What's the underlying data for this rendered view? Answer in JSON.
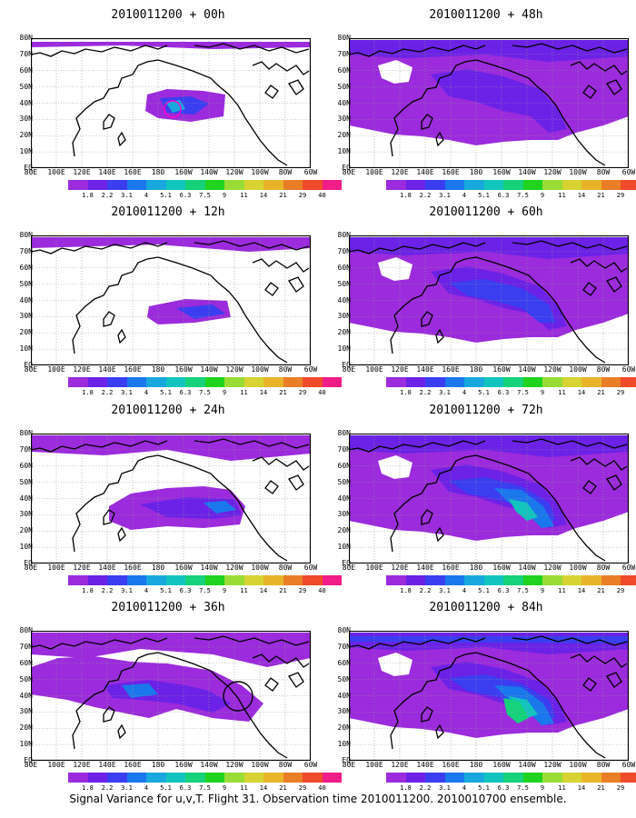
{
  "caption": "Signal Variance for u,v,T. Flight 31. Observation time 2010011200. 2010010700 ensemble.",
  "colorbar": {
    "labels": [
      "1.8",
      "2.2",
      "3.1",
      "4",
      "5.1",
      "6.3",
      "7.5",
      "9",
      "11",
      "14",
      "21",
      "29",
      "40"
    ],
    "colors": [
      "#9b2bdc",
      "#6b22e6",
      "#3a3ef0",
      "#1a78ec",
      "#18a8de",
      "#12c4be",
      "#16d27a",
      "#1fd31f",
      "#99dc35",
      "#d6d332",
      "#e8b42a",
      "#e97e27",
      "#ef4a2a",
      "#f01c88"
    ]
  },
  "map": {
    "lat_labels": [
      "80N",
      "70N",
      "60N",
      "50N",
      "40N",
      "30N",
      "20N",
      "10N",
      "EQ"
    ],
    "lon_labels": [
      "80E",
      "100E",
      "120E",
      "140E",
      "160E",
      "180",
      "160W",
      "140W",
      "120W",
      "100W",
      "80W",
      "60W"
    ]
  },
  "panels": [
    {
      "title": "2010011200 + 00h",
      "level": 0,
      "circle": "magenta"
    },
    {
      "title": "2010011200 + 48h",
      "level": 4,
      "circle": ""
    },
    {
      "title": "2010011200 + 12h",
      "level": 1,
      "circle": ""
    },
    {
      "title": "2010011200 + 60h",
      "level": 5,
      "circle": ""
    },
    {
      "title": "2010011200 + 24h",
      "level": 2,
      "circle": ""
    },
    {
      "title": "2010011200 + 72h",
      "level": 6,
      "circle": ""
    },
    {
      "title": "2010011200 + 36h",
      "level": 3,
      "circle": "black"
    },
    {
      "title": "2010011200 + 84h",
      "level": 7,
      "circle": ""
    }
  ]
}
